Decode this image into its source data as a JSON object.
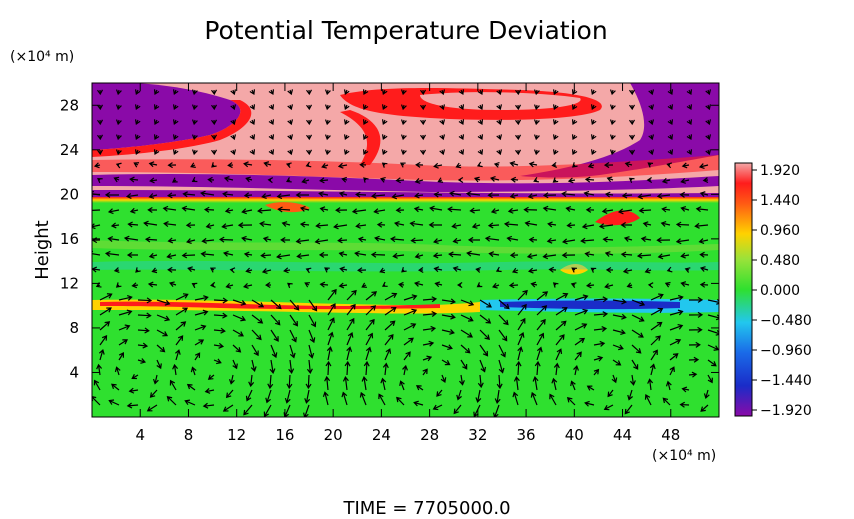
{
  "chart_data": {
    "type": "heatmap",
    "title": "Potential Temperature Deviation",
    "ylabel": "Height",
    "y_unit": "(×10⁴ m)",
    "x_unit": "(×10⁴ m)",
    "time_label": "TIME  =  7705000.0",
    "x_range": [
      0,
      52
    ],
    "y_range": [
      0,
      30
    ],
    "x_ticks": [
      4,
      8,
      12,
      16,
      20,
      24,
      28,
      32,
      36,
      40,
      44,
      48
    ],
    "y_ticks": [
      4,
      8,
      12,
      16,
      20,
      24,
      28
    ],
    "colorbar": {
      "range": [
        -1.92,
        1.92
      ],
      "tick_labels": [
        "1.920",
        "1.440",
        "0.960",
        "0.480",
        "0.000",
        "−0.480",
        "−0.960",
        "−1.440",
        "−1.920"
      ],
      "tick_values": [
        1.92,
        1.44,
        0.96,
        0.48,
        0.0,
        -0.48,
        -0.96,
        -1.44,
        -1.92
      ]
    },
    "field_description": "potential temperature deviation with overlaid wind vectors",
    "colors": {
      "max": "#f4a8a8",
      "high": "#ff1c1c",
      "mid_high": "#ffd200",
      "zero": "#2fe02f",
      "mid_low": "#22c7ee",
      "low": "#1a2cc8",
      "min": "#8a0aa8"
    }
  }
}
